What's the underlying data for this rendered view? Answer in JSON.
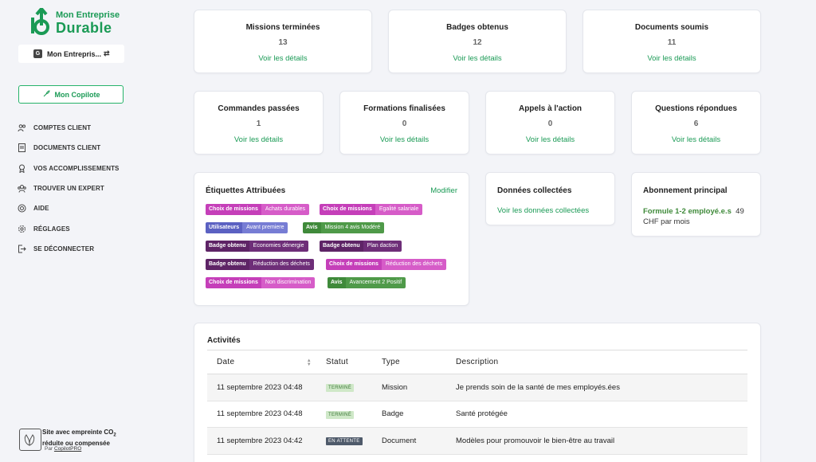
{
  "brand": {
    "line1": "Mon Entreprise",
    "line2": "Durable",
    "color": "#1a9a55"
  },
  "company": {
    "initial": "G",
    "name": "Mon Entrepris..."
  },
  "copilot": {
    "label": "Mon Copilote"
  },
  "nav": [
    {
      "label": "COMPTES CLIENT",
      "icon": "users-icon"
    },
    {
      "label": "DOCUMENTS CLIENT",
      "icon": "document-icon"
    },
    {
      "label": "VOS ACCOMPLISSEMENTS",
      "icon": "award-icon"
    },
    {
      "label": "TROUVER UN EXPERT",
      "icon": "expert-icon"
    },
    {
      "label": "AIDE",
      "icon": "help-icon"
    },
    {
      "label": "RÉGLAGES",
      "icon": "gear-icon"
    },
    {
      "label": "SE DÉCONNECTER",
      "icon": "logout-icon"
    }
  ],
  "footer": {
    "line1": "Site avec empreinte CO",
    "sub": "2",
    "line2": "réduite ou compensée",
    "by": "Par",
    "by_link": "CopilotPRO"
  },
  "stats_row1": [
    {
      "title": "Missions terminées",
      "value": "13",
      "link": "Voir les détails"
    },
    {
      "title": "Badges obtenus",
      "value": "12",
      "link": "Voir les détails"
    },
    {
      "title": "Documents soumis",
      "value": "11",
      "link": "Voir les détails"
    }
  ],
  "stats_row2": [
    {
      "title": "Commandes passées",
      "value": "1",
      "link": "Voir les détails"
    },
    {
      "title": "Formations finalisées",
      "value": "0",
      "link": "Voir les détails"
    },
    {
      "title": "Appels à l'action",
      "value": "0",
      "link": "Voir les détails"
    },
    {
      "title": "Questions répondues",
      "value": "6",
      "link": "Voir les détails"
    }
  ],
  "tags": {
    "title": "Étiquettes Attribuées",
    "edit": "Modifier",
    "items": [
      {
        "key": "Choix de missions",
        "value": "Achats durables",
        "color": "pink"
      },
      {
        "key": "Choix de missions",
        "value": "Egalité salariale",
        "color": "pink"
      },
      {
        "key": "Utilisateurs",
        "value": "Avant premiere",
        "color": "blue"
      },
      {
        "key": "Avis",
        "value": "Mission 4 avis Modéré",
        "color": "green"
      },
      {
        "key": "Badge obtenu",
        "value": "Economies dénergie",
        "color": "purple"
      },
      {
        "key": "Badge obtenu",
        "value": "Plan daction",
        "color": "purple"
      },
      {
        "key": "Badge obtenu",
        "value": "Réduction des déchets",
        "color": "purple"
      },
      {
        "key": "Choix de missions",
        "value": "Réduction des déchets",
        "color": "pink"
      },
      {
        "key": "Choix de missions",
        "value": "Non discrimination",
        "color": "pink"
      },
      {
        "key": "Avis",
        "value": "Avancement 2 Positif",
        "color": "green"
      }
    ]
  },
  "data_card": {
    "title": "Données collectées",
    "link": "Voir les données collectées"
  },
  "subscription": {
    "title": "Abonnement principal",
    "plan": "Formule 1-2 employé.e.s",
    "price": "49",
    "period": "CHF par mois"
  },
  "activities": {
    "title": "Activités",
    "columns": [
      "Date",
      "Statut",
      "Type",
      "Description"
    ],
    "rows": [
      {
        "date": "11 septembre 2023 04:48",
        "status": "TERMINÉ",
        "status_kind": "done",
        "type": "Mission",
        "desc": "Je prends soin de la santé de mes employés.ées"
      },
      {
        "date": "11 septembre 2023 04:48",
        "status": "TERMINÉ",
        "status_kind": "done",
        "type": "Badge",
        "desc": "Santé protégée"
      },
      {
        "date": "11 septembre 2023 04:42",
        "status": "EN ATTENTE",
        "status_kind": "wait",
        "type": "Document",
        "desc": "Modèles pour promouvoir le bien-être au travail"
      }
    ]
  }
}
